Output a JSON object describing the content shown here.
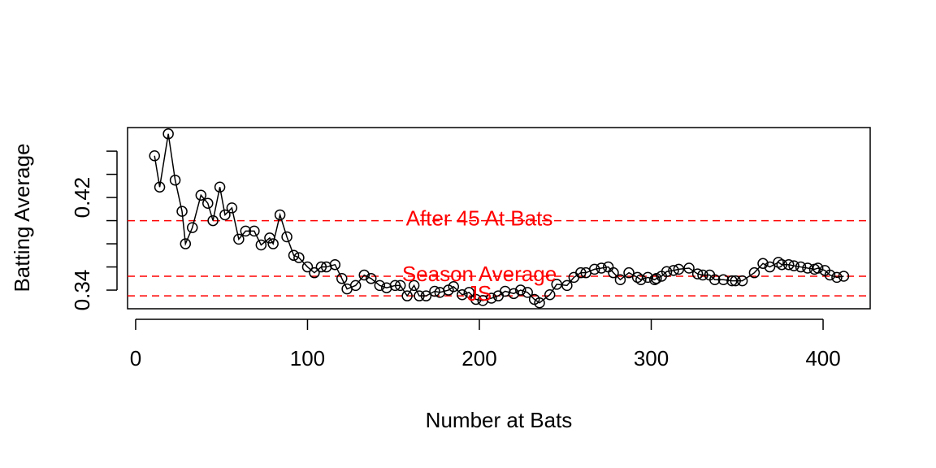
{
  "chart_data": {
    "type": "line",
    "x_label": "Number at Bats",
    "y_label": "Batting Average",
    "x": [
      11,
      14,
      19,
      23,
      27,
      29,
      33,
      38,
      42,
      45,
      49,
      52,
      56,
      60,
      64,
      69,
      73,
      78,
      80,
      84,
      88,
      92,
      95,
      100,
      104,
      108,
      111,
      116,
      120,
      123,
      128,
      133,
      137,
      142,
      146,
      151,
      154,
      158,
      162,
      165,
      169,
      174,
      177,
      182,
      185,
      190,
      194,
      198,
      202,
      207,
      211,
      215,
      220,
      224,
      228,
      232,
      235,
      241,
      245,
      251,
      255,
      259,
      262,
      267,
      271,
      275,
      278,
      282,
      287,
      292,
      294,
      298,
      302,
      303,
      306,
      309,
      313,
      316,
      322,
      327,
      330,
      334,
      337,
      342,
      347,
      349,
      353,
      360,
      365,
      369,
      374,
      376,
      380,
      383,
      387,
      391,
      395,
      397,
      401,
      404,
      408,
      412
    ],
    "values": [
      0.456,
      0.429,
      0.475,
      0.435,
      0.408,
      0.38,
      0.394,
      0.422,
      0.415,
      0.4,
      0.429,
      0.405,
      0.411,
      0.384,
      0.391,
      0.391,
      0.379,
      0.385,
      0.38,
      0.405,
      0.386,
      0.37,
      0.368,
      0.36,
      0.355,
      0.36,
      0.36,
      0.362,
      0.35,
      0.341,
      0.344,
      0.353,
      0.35,
      0.344,
      0.342,
      0.344,
      0.344,
      0.335,
      0.344,
      0.335,
      0.335,
      0.339,
      0.338,
      0.34,
      0.343,
      0.336,
      0.338,
      0.332,
      0.331,
      0.333,
      0.335,
      0.339,
      0.337,
      0.34,
      0.338,
      0.332,
      0.329,
      0.336,
      0.345,
      0.344,
      0.351,
      0.355,
      0.355,
      0.358,
      0.359,
      0.36,
      0.355,
      0.349,
      0.355,
      0.351,
      0.349,
      0.351,
      0.349,
      0.35,
      0.352,
      0.356,
      0.357,
      0.358,
      0.359,
      0.354,
      0.353,
      0.353,
      0.349,
      0.349,
      0.348,
      0.348,
      0.348,
      0.355,
      0.363,
      0.36,
      0.364,
      0.362,
      0.362,
      0.361,
      0.36,
      0.359,
      0.358,
      0.359,
      0.357,
      0.353,
      0.351,
      0.352
    ],
    "color": "#000000",
    "xlim": [
      -4.7,
      427.4
    ],
    "ylim": [
      0.3239,
      0.4804
    ],
    "xticks": [
      0,
      100,
      200,
      300,
      400
    ],
    "yticks": [
      0.34,
      {
        "value": 0.36,
        "label": null
      },
      {
        "value": 0.38,
        "label": null
      },
      {
        "value": 0.4,
        "label": null
      },
      0.42,
      {
        "value": 0.44,
        "label": null
      },
      {
        "value": 0.46,
        "label": null
      }
    ],
    "reference_lines": [
      {
        "value": 0.4,
        "label": "After 45 At Bats",
        "color": "#ff0000"
      },
      {
        "value": 0.352,
        "label": "Season Average",
        "color": "#ff0000"
      },
      {
        "value": 0.335,
        "label": "JS",
        "color": "#ff0000"
      }
    ]
  }
}
